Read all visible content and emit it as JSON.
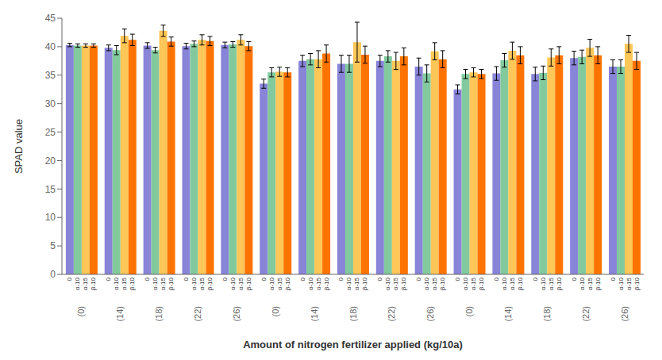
{
  "chart_data": {
    "type": "bar",
    "xlabel": "Amount of nitrogen fertilizer applied (kg/10a)",
    "ylabel": "SPAD value",
    "categories": [
      "(0)",
      "(14)",
      "(18)",
      "(22)",
      "(26)",
      "(0)",
      "(14)",
      "(18)",
      "(22)",
      "(26)",
      "(0)",
      "(14)",
      "(18)",
      "(22)",
      "(26)"
    ],
    "annotations": [
      "0",
      "α-10",
      "α-15",
      "β-10"
    ],
    "series": [
      {
        "color": "#8884d8",
        "values": [
          40.3,
          39.8,
          40.2,
          40.1,
          40.3,
          33.5,
          37.5,
          37.0,
          37.5,
          36.5,
          32.5,
          35.3,
          35.2,
          38.0,
          36.5
        ],
        "errors": [
          0.3,
          0.5,
          0.5,
          0.5,
          0.5,
          0.8,
          1.0,
          1.5,
          1.0,
          1.5,
          0.8,
          1.2,
          1.2,
          1.2,
          1.2
        ]
      },
      {
        "color": "#82ca9d",
        "values": [
          40.2,
          39.4,
          39.4,
          40.5,
          40.4,
          35.5,
          37.8,
          37.0,
          38.3,
          35.3,
          35.2,
          37.6,
          35.4,
          38.2,
          36.5
        ],
        "errors": [
          0.3,
          0.8,
          0.5,
          0.5,
          0.5,
          0.8,
          1.0,
          1.5,
          1.0,
          1.5,
          0.8,
          1.2,
          1.2,
          1.2,
          1.2
        ]
      },
      {
        "color": "#ffc658",
        "values": [
          40.2,
          41.9,
          42.8,
          41.2,
          41.2,
          35.6,
          37.8,
          40.8,
          37.5,
          39.2,
          35.5,
          39.3,
          38.1,
          39.8,
          40.5
        ],
        "errors": [
          0.3,
          1.2,
          1.0,
          0.9,
          0.9,
          0.8,
          1.5,
          3.5,
          1.5,
          1.5,
          0.8,
          1.5,
          1.5,
          1.5,
          1.5
        ]
      },
      {
        "color": "#ff7300",
        "values": [
          40.2,
          41.2,
          40.9,
          41.0,
          40.1,
          35.5,
          38.8,
          38.6,
          38.3,
          37.8,
          35.2,
          38.5,
          38.5,
          38.5,
          37.5
        ],
        "errors": [
          0.3,
          1.0,
          0.8,
          0.8,
          0.8,
          0.8,
          1.5,
          1.5,
          1.5,
          1.5,
          0.8,
          1.5,
          1.5,
          1.5,
          1.5
        ]
      }
    ],
    "ylim": [
      0,
      45
    ],
    "yticks": [
      0,
      5,
      10,
      15,
      20,
      25,
      30,
      35,
      40,
      45
    ],
    "grid": false
  }
}
